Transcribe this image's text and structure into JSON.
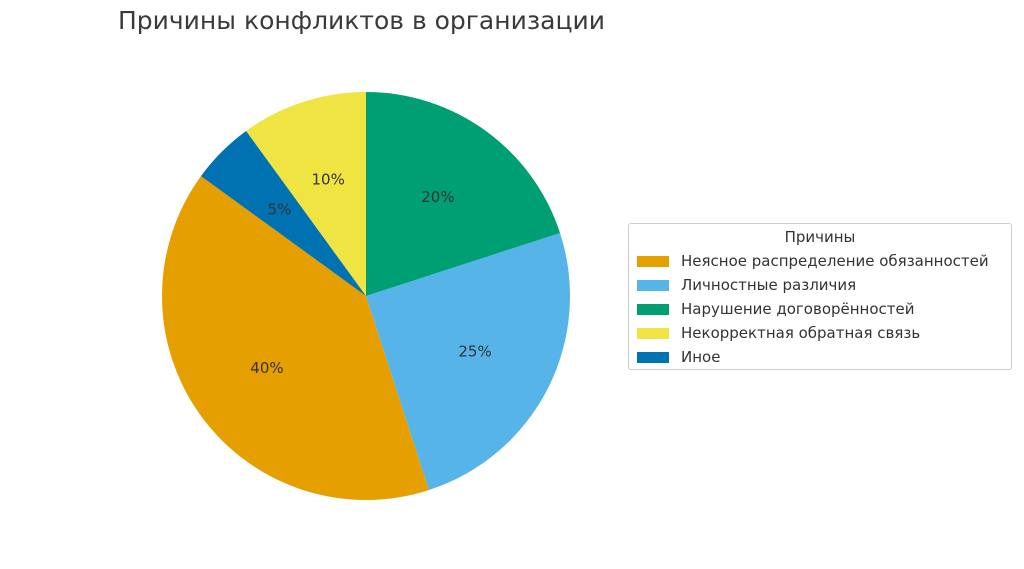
{
  "chart_data": {
    "type": "pie",
    "title": "Причины конфликтов в организации",
    "legend_title": "Причины",
    "legend_position": "right",
    "start_angle_deg": 144,
    "direction": "counterclockwise",
    "slices": [
      {
        "label": "Неясное распределение обязанностей",
        "value": 40,
        "display": "40%",
        "color": "#E69F00"
      },
      {
        "label": "Личностные различия",
        "value": 25,
        "display": "25%",
        "color": "#56B4E9"
      },
      {
        "label": "Нарушение договорённостей",
        "value": 20,
        "display": "20%",
        "color": "#009E73"
      },
      {
        "label": "Некорректная обратная связь",
        "value": 10,
        "display": "10%",
        "color": "#F0E442"
      },
      {
        "label": "Иное",
        "value": 5,
        "display": "5%",
        "color": "#0072B2"
      }
    ]
  }
}
